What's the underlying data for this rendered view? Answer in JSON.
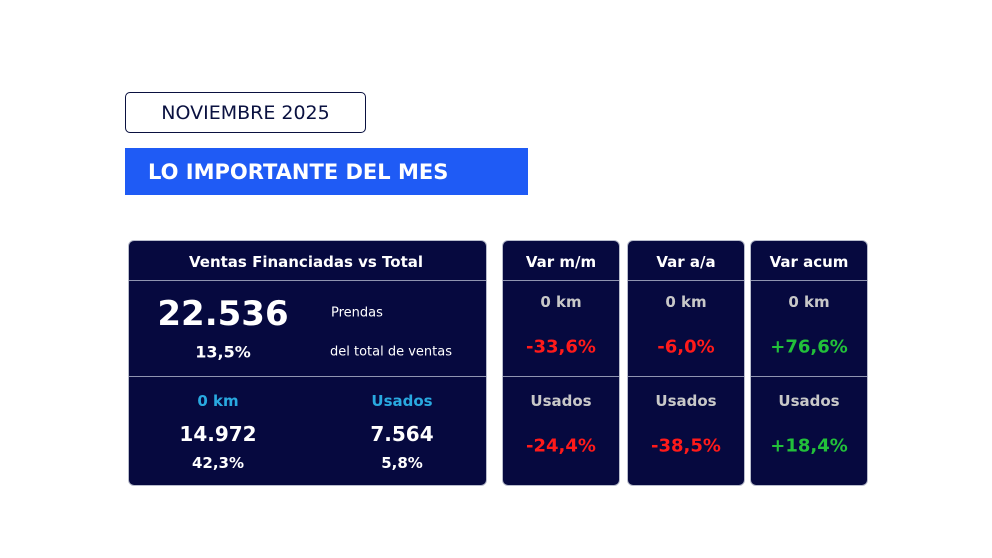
{
  "header": {
    "period": "NOVIEMBRE 2025",
    "title": "LO IMPORTANTE DEL MES"
  },
  "summary": {
    "title": "Ventas Financiadas vs Total",
    "total": "22.536",
    "total_label": "Prendas",
    "share": "13,5%",
    "share_label": "del total de ventas",
    "segments": [
      {
        "name": "0 km",
        "units": "14.972",
        "share": "42,3%"
      },
      {
        "name": "Usados",
        "units": "7.564",
        "share": "5,8%"
      }
    ]
  },
  "variations": [
    {
      "title": "Var m/m",
      "rows": [
        {
          "name": "0 km",
          "value": "-33,6%"
        },
        {
          "name": "Usados",
          "value": "-24,4%"
        }
      ]
    },
    {
      "title": "Var a/a",
      "rows": [
        {
          "name": "0 km",
          "value": "-6,0%"
        },
        {
          "name": "Usados",
          "value": "-38,5%"
        }
      ]
    },
    {
      "title": "Var acum",
      "rows": [
        {
          "name": "0 km",
          "value": "+76,6%"
        },
        {
          "name": "Usados",
          "value": "+18,4%"
        }
      ]
    }
  ]
}
